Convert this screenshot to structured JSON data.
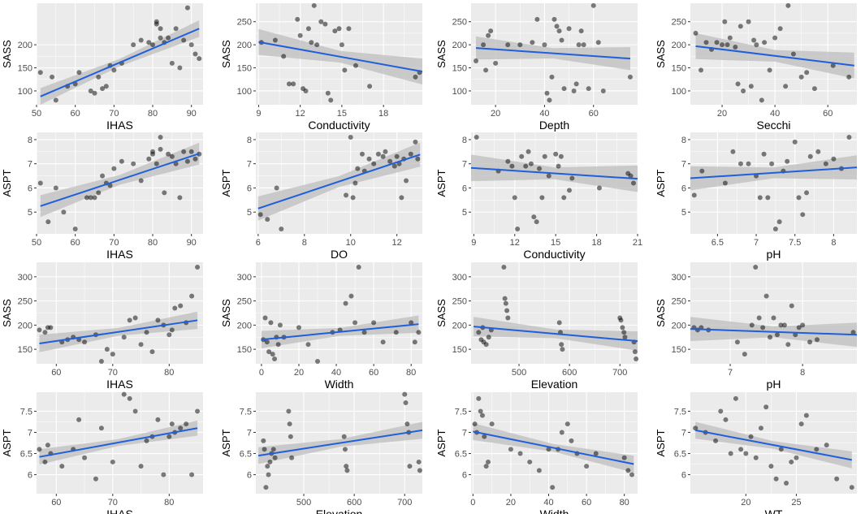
{
  "style": {
    "panel_bg": "#ebebeb",
    "grid_color": "#ffffff",
    "point_color": "#000000",
    "line_color": "#1f5fdc",
    "band_color": "#bdbdbd"
  },
  "chart_data": [
    {
      "type": "scatter",
      "xlabel": "IHAS",
      "ylabel": "SASS",
      "xlim": [
        50,
        93
      ],
      "ylim": [
        70,
        290
      ],
      "xticks": [
        50,
        60,
        70,
        80,
        90
      ],
      "yticks": [
        100,
        150,
        200
      ],
      "x": [
        51,
        54,
        55,
        58,
        60,
        61,
        64,
        65,
        66,
        67,
        68,
        69,
        70,
        72,
        75,
        77,
        79,
        80,
        81,
        81,
        82,
        82,
        83,
        84,
        85,
        86,
        87,
        88,
        89,
        90,
        91,
        92
      ],
      "y": [
        140,
        130,
        80,
        110,
        115,
        140,
        100,
        95,
        130,
        105,
        110,
        155,
        145,
        160,
        200,
        210,
        205,
        200,
        250,
        245,
        235,
        215,
        205,
        215,
        160,
        235,
        150,
        210,
        280,
        200,
        180,
        170
      ],
      "fit": [
        [
          51,
          88
        ],
        [
          92,
          235
        ]
      ],
      "band": 18
    },
    {
      "type": "scatter",
      "xlabel": "Conductivity",
      "ylabel": "SASS",
      "xlim": [
        8.8,
        20.8
      ],
      "ylim": [
        70,
        290
      ],
      "xticks": [
        9,
        12,
        15,
        18,
        21
      ],
      "yticks": [
        100,
        150,
        200,
        250
      ],
      "x": [
        9.2,
        10.2,
        10.8,
        11.2,
        11.5,
        11.8,
        12,
        12.2,
        12.4,
        12.6,
        12.8,
        13,
        13.2,
        13.5,
        13.8,
        14,
        14.2,
        14.5,
        14.8,
        15,
        15.2,
        15.5,
        16,
        17,
        20.3,
        20.6
      ],
      "y": [
        205,
        210,
        175,
        115,
        115,
        255,
        220,
        105,
        100,
        235,
        205,
        285,
        200,
        250,
        245,
        95,
        80,
        230,
        235,
        200,
        145,
        235,
        155,
        110,
        130,
        140
      ],
      "fit": [
        [
          9,
          206
        ],
        [
          20.8,
          142
        ]
      ],
      "band": 28
    },
    {
      "type": "scatter",
      "xlabel": "Depth",
      "ylabel": "SASS",
      "xlim": [
        10,
        78
      ],
      "ylim": [
        70,
        290
      ],
      "xticks": [
        20,
        40,
        60
      ],
      "yticks": [
        100,
        150,
        200,
        250
      ],
      "x": [
        12,
        15,
        16,
        17,
        18,
        20,
        25,
        30,
        35,
        37,
        40,
        41,
        42,
        43,
        44,
        45,
        46,
        47,
        48,
        50,
        52,
        53,
        54,
        55,
        56,
        58,
        60,
        62,
        64,
        75
      ],
      "y": [
        165,
        200,
        145,
        220,
        230,
        160,
        200,
        200,
        205,
        255,
        200,
        95,
        80,
        130,
        255,
        240,
        230,
        210,
        105,
        235,
        100,
        115,
        200,
        230,
        200,
        105,
        285,
        205,
        100,
        130
      ],
      "fit": [
        [
          12,
          193
        ],
        [
          75,
          170
        ]
      ],
      "band": 25
    },
    {
      "type": "scatter",
      "xlabel": "Secchi",
      "ylabel": "SASS",
      "xlim": [
        8,
        71
      ],
      "ylim": [
        70,
        290
      ],
      "xticks": [
        20,
        40,
        60
      ],
      "yticks": [
        100,
        150,
        200,
        250
      ],
      "x": [
        10,
        12,
        14,
        16,
        18,
        20,
        21,
        22,
        23,
        25,
        26,
        27,
        28,
        30,
        31,
        32,
        33,
        35,
        36,
        38,
        40,
        42,
        44,
        45,
        47,
        50,
        52,
        55,
        62,
        68
      ],
      "y": [
        225,
        145,
        205,
        190,
        205,
        200,
        250,
        200,
        215,
        195,
        115,
        240,
        100,
        250,
        110,
        210,
        200,
        80,
        205,
        145,
        215,
        235,
        110,
        285,
        180,
        130,
        140,
        105,
        155,
        130
      ],
      "fit": [
        [
          10,
          197
        ],
        [
          70,
          155
        ]
      ],
      "band": 28
    },
    {
      "type": "scatter",
      "xlabel": "IHAS",
      "ylabel": "ASPT",
      "xlim": [
        50,
        93
      ],
      "ylim": [
        4.1,
        8.3
      ],
      "xticks": [
        50,
        60,
        70,
        80,
        90
      ],
      "yticks": [
        5,
        6,
        7,
        8
      ],
      "x": [
        51,
        53,
        55,
        57,
        60,
        63,
        64,
        65,
        66,
        67,
        68,
        69,
        70,
        72,
        75,
        77,
        79,
        80,
        80,
        81,
        82,
        82,
        83,
        84,
        85,
        86,
        87,
        88,
        89,
        90,
        91,
        92
      ],
      "y": [
        6.2,
        4.6,
        6.0,
        5.0,
        4.3,
        5.6,
        5.6,
        5.6,
        5.8,
        6.5,
        6.2,
        6.1,
        6.8,
        7.1,
        7.0,
        6.3,
        7.2,
        7.4,
        7.5,
        7.0,
        8.1,
        7.6,
        5.8,
        7.4,
        7.3,
        7.0,
        5.6,
        7.5,
        7.1,
        7.5,
        7.2,
        7.4
      ],
      "fit": [
        [
          51,
          5.25
        ],
        [
          92,
          7.42
        ]
      ],
      "band": 0.45
    },
    {
      "type": "scatter",
      "xlabel": "DO",
      "ylabel": "ASPT",
      "xlim": [
        5.9,
        13.1
      ],
      "ylim": [
        4.1,
        8.3
      ],
      "xticks": [
        6,
        8,
        10,
        12
      ],
      "yticks": [
        5,
        6,
        7,
        8
      ],
      "x": [
        6.1,
        6.4,
        6.8,
        7.0,
        9.8,
        10.0,
        10.1,
        10.2,
        10.3,
        10.5,
        10.6,
        10.8,
        11.0,
        11.2,
        11.4,
        11.5,
        11.7,
        11.9,
        12.0,
        12.1,
        12.2,
        12.3,
        12.4,
        12.6,
        12.8,
        12.9
      ],
      "y": [
        4.9,
        4.7,
        6.0,
        4.3,
        5.7,
        8.1,
        5.6,
        6.2,
        6.8,
        7.4,
        6.7,
        7.2,
        7.0,
        7.4,
        7.3,
        7.5,
        7.1,
        6.9,
        7.3,
        7.0,
        5.6,
        7.2,
        6.3,
        7.4,
        7.9,
        7.2
      ],
      "fit": [
        [
          6,
          5.15
        ],
        [
          13,
          7.38
        ]
      ],
      "band": 0.5
    },
    {
      "type": "scatter",
      "xlabel": "Conductivity",
      "ylabel": "ASPT",
      "xlim": [
        8.8,
        21
      ],
      "ylim": [
        4.1,
        8.3
      ],
      "xticks": [
        9,
        12,
        15,
        18,
        21
      ],
      "yticks": [
        5,
        6,
        7,
        8
      ],
      "x": [
        9.2,
        10.8,
        11.5,
        11.8,
        12.0,
        12.2,
        12.5,
        12.8,
        13.0,
        13.2,
        13.4,
        13.6,
        13.8,
        14.0,
        14.2,
        14.5,
        15.0,
        15.2,
        15.4,
        15.6,
        16.0,
        16.2,
        18.2,
        20.3,
        20.5,
        20.7
      ],
      "y": [
        8.1,
        6.7,
        7.1,
        6.9,
        5.6,
        4.3,
        7.3,
        6.9,
        7.5,
        7.0,
        4.8,
        4.6,
        6.8,
        5.6,
        7.3,
        6.5,
        7.4,
        6.9,
        7.3,
        5.6,
        5.9,
        6.4,
        6.0,
        6.6,
        6.5,
        6.2
      ],
      "fit": [
        [
          8.8,
          6.83
        ],
        [
          21,
          6.38
        ]
      ],
      "band": 0.55
    },
    {
      "type": "scatter",
      "xlabel": "pH",
      "ylabel": "ASPT",
      "xlim": [
        6.15,
        8.3
      ],
      "ylim": [
        4.1,
        8.3
      ],
      "xticks": [
        6.5,
        7.0,
        7.5,
        8.0
      ],
      "yticks": [
        5,
        6,
        7,
        8
      ],
      "x": [
        6.2,
        6.3,
        6.6,
        6.7,
        6.8,
        6.9,
        7.0,
        7.05,
        7.1,
        7.15,
        7.2,
        7.25,
        7.3,
        7.35,
        7.4,
        7.5,
        7.55,
        7.6,
        7.65,
        7.7,
        7.8,
        7.9,
        8.0,
        8.1,
        8.2
      ],
      "y": [
        5.7,
        6.7,
        6.2,
        7.5,
        7.0,
        7.0,
        6.5,
        5.6,
        7.4,
        5.6,
        7.0,
        4.3,
        4.6,
        6.7,
        7.1,
        7.9,
        5.6,
        4.9,
        5.8,
        7.3,
        7.5,
        7.0,
        7.2,
        6.8,
        8.1
      ],
      "fit": [
        [
          6.15,
          6.4
        ],
        [
          8.3,
          6.85
        ]
      ],
      "band": 0.5
    },
    {
      "type": "scatter",
      "xlabel": "IHAS",
      "ylabel": "SASS",
      "xlim": [
        56.5,
        86
      ],
      "ylim": [
        120,
        330
      ],
      "xticks": [
        60,
        70,
        80
      ],
      "yticks": [
        150,
        200,
        250,
        300
      ],
      "x": [
        57,
        58,
        58.5,
        59,
        61,
        62,
        63,
        64,
        65,
        67,
        68,
        69,
        70,
        72,
        73,
        74,
        75,
        76,
        77,
        78,
        79,
        80,
        80.5,
        81,
        82,
        83,
        84,
        85
      ],
      "y": [
        190,
        185,
        195,
        195,
        165,
        170,
        175,
        170,
        165,
        180,
        125,
        150,
        140,
        175,
        210,
        215,
        160,
        185,
        145,
        210,
        200,
        180,
        190,
        235,
        240,
        205,
        260,
        320
      ],
      "fit": [
        [
          57,
          162
        ],
        [
          85,
          210
        ]
      ],
      "band": 18
    },
    {
      "type": "scatter",
      "xlabel": "Width",
      "ylabel": "SASS",
      "xlim": [
        -3,
        86
      ],
      "ylim": [
        120,
        330
      ],
      "xticks": [
        0,
        20,
        40,
        60,
        80
      ],
      "yticks": [
        150,
        200,
        250,
        300
      ],
      "x": [
        1,
        2,
        3,
        4,
        5,
        6,
        7,
        8,
        9,
        10,
        12,
        20,
        25,
        30,
        38,
        42,
        45,
        48,
        50,
        52,
        55,
        60,
        65,
        72,
        80,
        82,
        84
      ],
      "y": [
        170,
        215,
        165,
        145,
        205,
        140,
        130,
        175,
        160,
        200,
        175,
        195,
        160,
        125,
        185,
        190,
        245,
        260,
        205,
        320,
        185,
        205,
        165,
        185,
        205,
        165,
        185
      ],
      "fit": [
        [
          0,
          170
        ],
        [
          84,
          202
        ]
      ],
      "band": 18
    },
    {
      "type": "scatter",
      "xlabel": "Elevation",
      "ylabel": "SASS",
      "xlim": [
        405,
        735
      ],
      "ylim": [
        120,
        330
      ],
      "xticks": [
        500,
        600,
        700
      ],
      "yticks": [
        150,
        200,
        250,
        300
      ],
      "x": [
        420,
        425,
        428,
        430,
        435,
        440,
        445,
        470,
        472,
        474,
        476,
        478,
        580,
        582,
        584,
        586,
        700,
        702,
        705,
        708,
        710,
        728,
        730,
        732
      ],
      "y": [
        185,
        170,
        195,
        165,
        160,
        175,
        190,
        320,
        255,
        245,
        230,
        215,
        205,
        185,
        160,
        150,
        215,
        210,
        195,
        185,
        175,
        165,
        145,
        130
      ],
      "fit": [
        [
          410,
          197
        ],
        [
          735,
          167
        ]
      ],
      "band": 20
    },
    {
      "type": "scatter",
      "xlabel": "pH",
      "ylabel": "SASS",
      "xlim": [
        6.45,
        8.75
      ],
      "ylim": [
        120,
        330
      ],
      "xticks": [
        7,
        8
      ],
      "yticks": [
        150,
        200,
        250,
        300
      ],
      "x": [
        6.5,
        6.55,
        6.6,
        6.7,
        7.1,
        7.2,
        7.3,
        7.35,
        7.4,
        7.45,
        7.5,
        7.55,
        7.6,
        7.65,
        7.7,
        7.75,
        7.8,
        7.85,
        7.9,
        7.95,
        8.0,
        8.1,
        8.2,
        8.7
      ],
      "y": [
        195,
        190,
        195,
        190,
        165,
        140,
        200,
        320,
        215,
        195,
        260,
        175,
        215,
        180,
        200,
        200,
        160,
        240,
        180,
        195,
        200,
        165,
        170,
        185
      ],
      "fit": [
        [
          6.45,
          192
        ],
        [
          8.75,
          180
        ]
      ],
      "band": 25
    },
    {
      "type": "scatter",
      "xlabel": "IHAS",
      "ylabel": "ASPT",
      "xlim": [
        56.5,
        86
      ],
      "ylim": [
        5.55,
        7.95
      ],
      "xticks": [
        60,
        70,
        80
      ],
      "yticks": [
        6.0,
        6.5,
        7.0,
        7.5
      ],
      "x": [
        57,
        58,
        58.5,
        59,
        61,
        63,
        64,
        65,
        67,
        68,
        70,
        72,
        73,
        74,
        75,
        76,
        77,
        78,
        79,
        80,
        80.5,
        81,
        82,
        83,
        84,
        85
      ],
      "y": [
        6.6,
        6.3,
        6.7,
        6.5,
        6.2,
        6.6,
        7.3,
        6.4,
        5.9,
        7.1,
        6.3,
        7.9,
        7.8,
        7.5,
        6.2,
        6.8,
        6.9,
        7.3,
        6.0,
        6.9,
        7.2,
        7.0,
        7.1,
        7.2,
        6.0,
        7.5
      ],
      "fit": [
        [
          57,
          6.42
        ],
        [
          85,
          7.1
        ]
      ],
      "band": 0.18
    },
    {
      "type": "scatter",
      "xlabel": "Elevation",
      "ylabel": "ASPT",
      "xlim": [
        405,
        735
      ],
      "ylim": [
        5.55,
        7.95
      ],
      "xticks": [
        500,
        600,
        700
      ],
      "yticks": [
        6.0,
        6.5,
        7.0,
        7.5
      ],
      "x": [
        420,
        422,
        425,
        428,
        430,
        433,
        436,
        440,
        443,
        470,
        472,
        474,
        476,
        580,
        582,
        584,
        586,
        700,
        702,
        705,
        708,
        710,
        728,
        730
      ],
      "y": [
        6.8,
        6.6,
        5.7,
        6.2,
        6.0,
        6.3,
        6.5,
        6.6,
        6.4,
        7.5,
        7.2,
        6.9,
        6.4,
        6.9,
        6.6,
        6.2,
        6.1,
        7.9,
        7.7,
        7.2,
        7.0,
        6.2,
        6.3,
        6.1
      ],
      "fit": [
        [
          410,
          6.45
        ],
        [
          735,
          7.05
        ]
      ],
      "band": 0.2
    },
    {
      "type": "scatter",
      "xlabel": "Width",
      "ylabel": "ASPT",
      "xlim": [
        -1,
        87
      ],
      "ylim": [
        5.55,
        7.95
      ],
      "xticks": [
        0,
        20,
        40,
        60,
        80
      ],
      "yticks": [
        6.0,
        6.5,
        7.0,
        7.5
      ],
      "x": [
        1,
        2,
        3,
        4,
        5,
        6,
        7,
        8,
        10,
        20,
        25,
        30,
        35,
        40,
        42,
        45,
        47,
        50,
        52,
        55,
        60,
        65,
        80,
        82,
        84
      ],
      "y": [
        7.2,
        7.0,
        7.8,
        7.5,
        7.4,
        6.9,
        6.2,
        6.3,
        7.2,
        6.6,
        6.5,
        6.3,
        6.1,
        6.6,
        5.7,
        6.6,
        7.0,
        7.2,
        6.8,
        6.5,
        6.2,
        6.5,
        6.4,
        6.1,
        6.0
      ],
      "fit": [
        [
          0,
          7.02
        ],
        [
          85,
          6.25
        ]
      ],
      "band": 0.2
    },
    {
      "type": "scatter",
      "xlabel": "WT",
      "ylabel": "ASPT",
      "xlim": [
        14.5,
        31
      ],
      "ylim": [
        5.55,
        7.95
      ],
      "xticks": [
        20,
        25
      ],
      "yticks": [
        6.0,
        6.5,
        7.0,
        7.5
      ],
      "x": [
        15,
        16,
        17,
        17.5,
        18,
        18.5,
        19,
        19.5,
        20,
        20.5,
        21,
        21.5,
        22,
        22.5,
        23,
        23.5,
        24,
        24.5,
        25,
        25.5,
        26,
        27,
        28,
        29,
        30.5
      ],
      "y": [
        7.1,
        7.0,
        6.8,
        7.5,
        7.3,
        6.5,
        7.8,
        6.6,
        6.5,
        6.9,
        6.4,
        7.1,
        7.6,
        6.2,
        5.9,
        6.6,
        5.8,
        6.3,
        6.4,
        7.2,
        7.4,
        6.6,
        6.7,
        5.9,
        5.7
      ],
      "fit": [
        [
          15,
          7.05
        ],
        [
          30.5,
          6.35
        ]
      ],
      "band": 0.2
    }
  ]
}
